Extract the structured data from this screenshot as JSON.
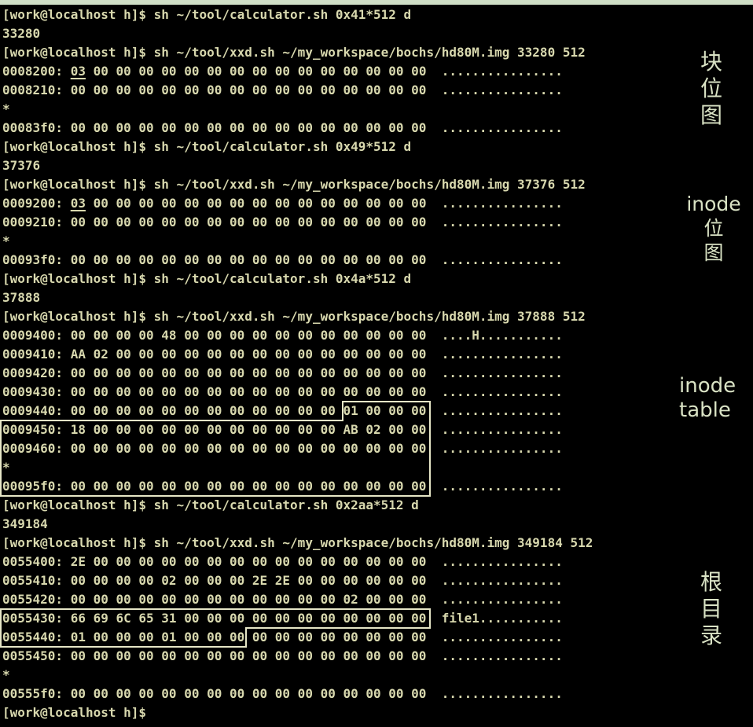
{
  "page": {
    "background_color": "#000000",
    "top_border_color": "#cfdec6",
    "terminal_text_color": "#d8d8ae",
    "highlight_box_color": "#e6e6c6",
    "annotation_text_color": "#d9e2c4"
  },
  "terminal": {
    "prompt": "[work@localhost h]$",
    "lines": [
      {
        "segments": [
          {
            "text": "[work@localhost h]$ sh ~/tool/calculator.sh 0x41*512 d"
          }
        ]
      },
      {
        "segments": [
          {
            "text": "33280"
          }
        ]
      },
      {
        "segments": [
          {
            "text": "[work@localhost h]$ sh ~/tool/xxd.sh ~/my_workspace/bochs/hd80M.img 33280 512"
          }
        ]
      },
      {
        "segments": [
          {
            "text": "0008200: "
          },
          {
            "text": "03",
            "underline": true
          },
          {
            "text": " 00 00 00 00 00 00 00 00 00 00 00 00 00 00 00  ................"
          }
        ]
      },
      {
        "segments": [
          {
            "text": "0008210: 00 00 00 00 00 00 00 00 00 00 00 00 00 00 00 00  ................"
          }
        ]
      },
      {
        "segments": [
          {
            "text": "*"
          }
        ]
      },
      {
        "segments": [
          {
            "text": "00083f0: 00 00 00 00 00 00 00 00 00 00 00 00 00 00 00 00  ................"
          }
        ]
      },
      {
        "segments": [
          {
            "text": "[work@localhost h]$ sh ~/tool/calculator.sh 0x49*512 d"
          }
        ]
      },
      {
        "segments": [
          {
            "text": "37376"
          }
        ]
      },
      {
        "segments": [
          {
            "text": "[work@localhost h]$ sh ~/tool/xxd.sh ~/my_workspace/bochs/hd80M.img 37376 512"
          }
        ]
      },
      {
        "segments": [
          {
            "text": "0009200: "
          },
          {
            "text": "03",
            "underline": true
          },
          {
            "text": " 00 00 00 00 00 00 00 00 00 00 00 00 00 00 00  ................"
          }
        ]
      },
      {
        "segments": [
          {
            "text": "0009210: 00 00 00 00 00 00 00 00 00 00 00 00 00 00 00 00  ................"
          }
        ]
      },
      {
        "segments": [
          {
            "text": "*"
          }
        ]
      },
      {
        "segments": [
          {
            "text": "00093f0: 00 00 00 00 00 00 00 00 00 00 00 00 00 00 00 00  ................"
          }
        ]
      },
      {
        "segments": [
          {
            "text": "[work@localhost h]$ sh ~/tool/calculator.sh 0x4a*512 d"
          }
        ]
      },
      {
        "segments": [
          {
            "text": "37888"
          }
        ]
      },
      {
        "segments": [
          {
            "text": "[work@localhost h]$ sh ~/tool/xxd.sh ~/my_workspace/bochs/hd80M.img 37888 512"
          }
        ]
      },
      {
        "segments": [
          {
            "text": "0009400: 00 00 00 00 48 00 00 00 00 00 00 00 00 00 00 00  ....H..........."
          }
        ]
      },
      {
        "segments": [
          {
            "text": "0009410: AA 02 00 00 00 00 00 00 00 00 00 00 00 00 00 00  ................"
          }
        ]
      },
      {
        "segments": [
          {
            "text": "0009420: 00 00 00 00 00 00 00 00 00 00 00 00 00 00 00 00  ................"
          }
        ]
      },
      {
        "segments": [
          {
            "text": "0009430: 00 00 00 00 00 00 00 00 00 00 00 00 00 00 00 00  ................"
          }
        ]
      },
      {
        "segments": [
          {
            "text": "0009440: 00 00 00 00 00 00 00 00 00 00 00 00 01 00 00 00  ................"
          }
        ]
      },
      {
        "segments": [
          {
            "text": "0009450: 18 00 00 00 00 00 00 00 00 00 00 00 AB 02 00 00  ................"
          }
        ]
      },
      {
        "segments": [
          {
            "text": "0009460: 00 00 00 00 00 00 00 00 00 00 00 00 00 00 00 00  ................"
          }
        ]
      },
      {
        "segments": [
          {
            "text": "*"
          }
        ]
      },
      {
        "segments": [
          {
            "text": "00095f0: 00 00 00 00 00 00 00 00 00 00 00 00 00 00 00 00  ................"
          }
        ]
      },
      {
        "segments": [
          {
            "text": "[work@localhost h]$ sh ~/tool/calculator.sh 0x2aa*512 d"
          }
        ]
      },
      {
        "segments": [
          {
            "text": "349184"
          }
        ]
      },
      {
        "segments": [
          {
            "text": "[work@localhost h]$ sh ~/tool/xxd.sh ~/my_workspace/bochs/hd80M.img 349184 512"
          }
        ]
      },
      {
        "segments": [
          {
            "text": "0055400: 2E 00 00 00 00 00 00 00 00 00 00 00 00 00 00 00  ................"
          }
        ]
      },
      {
        "segments": [
          {
            "text": "0055410: 00 00 00 00 02 00 00 00 2E 2E 00 00 00 00 00 00  ................"
          }
        ]
      },
      {
        "segments": [
          {
            "text": "0055420: 00 00 00 00 00 00 00 00 00 00 00 00 02 00 00 00  ................"
          }
        ]
      },
      {
        "segments": [
          {
            "text": "0055430: 66 69 6C 65 31 00 00 00 00 00 00 00 00 00 00 00  file1..........."
          }
        ]
      },
      {
        "segments": [
          {
            "text": "0055440: 01 00 00 00 01 00 00 00 00 00 00 00 00 00 00 00  ................"
          }
        ]
      },
      {
        "segments": [
          {
            "text": "0055450: 00 00 00 00 00 00 00 00 00 00 00 00 00 00 00 00  ................"
          }
        ]
      },
      {
        "segments": [
          {
            "text": "*"
          }
        ]
      },
      {
        "segments": [
          {
            "text": "00555f0: 00 00 00 00 00 00 00 00 00 00 00 00 00 00 00 00  ................"
          }
        ]
      },
      {
        "segments": [
          {
            "text": "[work@localhost h]$"
          }
        ]
      }
    ]
  },
  "annotations": [
    {
      "id": "block-bitmap",
      "lines": [
        "块",
        "位",
        "图"
      ]
    },
    {
      "id": "inode-bitmap",
      "lines": [
        "inode",
        "位",
        "图"
      ]
    },
    {
      "id": "inode-table",
      "lines": [
        "inode",
        "table"
      ]
    },
    {
      "id": "root-directory",
      "lines": [
        "根",
        "目",
        "录"
      ]
    }
  ]
}
